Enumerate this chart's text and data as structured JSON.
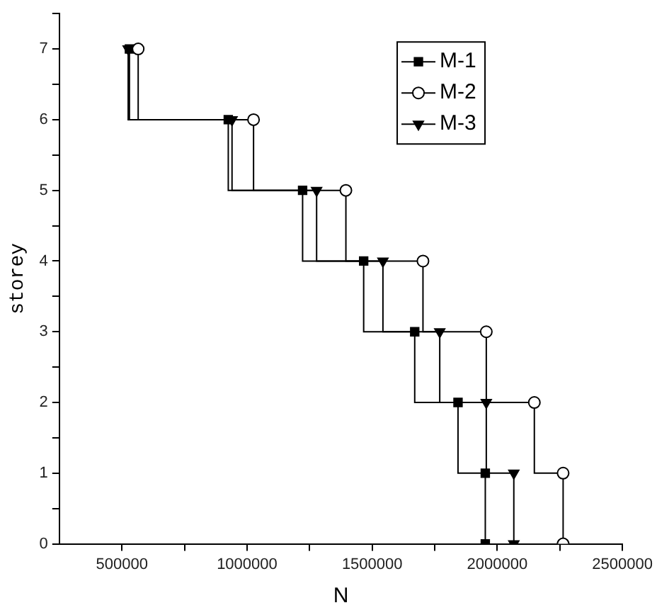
{
  "chart_data": {
    "type": "step",
    "xlabel": "N",
    "ylabel": "storey",
    "series": [
      {
        "name": "M-1",
        "color": "#000000",
        "marker": "square",
        "x": [
          530000,
          925000,
          1222000,
          1466000,
          1670000,
          1843000,
          1952000,
          1952000
        ],
        "values": [
          7,
          6,
          5,
          4,
          3,
          2,
          1,
          0
        ]
      },
      {
        "name": "M-2",
        "color": "#000000",
        "marker": "circle",
        "x": [
          565000,
          1026000,
          1395000,
          1703000,
          1956000,
          2148000,
          2263000,
          2263000
        ],
        "values": [
          7,
          6,
          5,
          4,
          3,
          2,
          1,
          0
        ]
      },
      {
        "name": "M-3",
        "color": "#000000",
        "marker": "triangle",
        "x": [
          525000,
          940000,
          1278000,
          1543000,
          1770000,
          1956000,
          2066000,
          2066000
        ],
        "values": [
          7,
          6,
          5,
          4,
          3,
          2,
          1,
          0
        ]
      }
    ],
    "xlim": [
      250000,
      2500000
    ],
    "xticks": [
      500000,
      {
        "value": 750000,
        "label": null
      },
      1000000,
      {
        "value": 1250000,
        "label": null
      },
      1500000,
      {
        "value": 1750000,
        "label": null
      },
      2000000,
      {
        "value": 2250000,
        "label": null
      },
      2500000
    ],
    "ylim": [
      0,
      7.5
    ],
    "yticks": [
      0,
      {
        "value": 0.5,
        "label": null
      },
      1,
      {
        "value": 1.5,
        "label": null
      },
      2,
      {
        "value": 2.5,
        "label": null
      },
      3,
      {
        "value": 3.5,
        "label": null
      },
      4,
      {
        "value": 4.5,
        "label": null
      },
      5,
      {
        "value": 5.5,
        "label": null
      },
      6,
      {
        "value": 6.5,
        "label": null
      },
      7,
      {
        "value": 7.5,
        "label": null
      }
    ],
    "grid": false,
    "legend": "top right"
  }
}
